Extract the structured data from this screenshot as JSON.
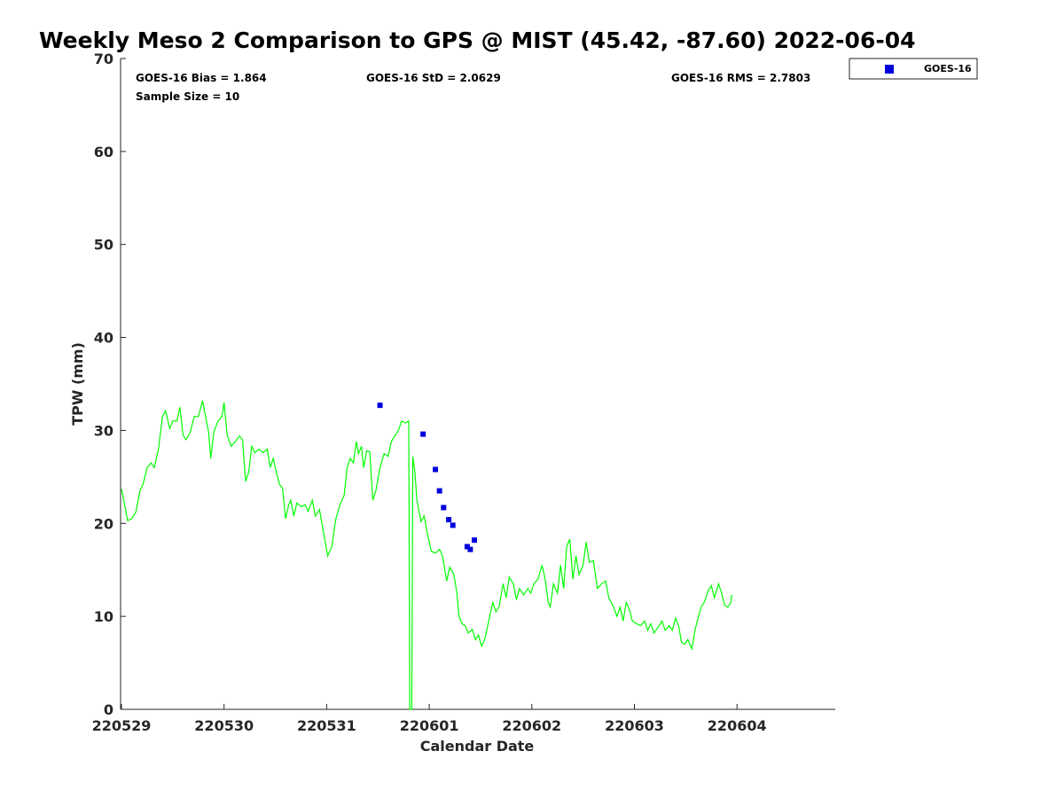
{
  "chart_data": {
    "type": "scatter",
    "title": "Weekly Meso 2 Comparison to GPS @ MIST (45.42, -87.60) 2022-06-04",
    "xlabel": "Calendar Date",
    "ylabel": "TPW (mm)",
    "ylim": [
      0,
      70
    ],
    "xlim": [
      0,
      6.95
    ],
    "yticks": [
      0,
      10,
      20,
      30,
      40,
      50,
      60,
      70
    ],
    "xticks": [
      {
        "value": 0,
        "label": "220529"
      },
      {
        "value": 1,
        "label": "220530"
      },
      {
        "value": 2,
        "label": "220531"
      },
      {
        "value": 3,
        "label": "220601"
      },
      {
        "value": 4,
        "label": "220602"
      },
      {
        "value": 5,
        "label": "220603"
      },
      {
        "value": 6,
        "label": "220604"
      }
    ],
    "grid": false,
    "legend_position": "top-right, outside",
    "annotations": {
      "bias": "GOES-16 Bias = 1.864",
      "std": "GOES-16 StD = 2.0629",
      "rms": "GOES-16 RMS = 2.7803",
      "sample": "Sample Size = 10"
    },
    "series": [
      {
        "name": "GOES-16",
        "kind": "scatter",
        "color": "#0000dd",
        "marker": "square",
        "points": [
          [
            2.52,
            32.7
          ],
          [
            2.94,
            29.6
          ],
          [
            3.06,
            25.8
          ],
          [
            3.1,
            23.5
          ],
          [
            3.14,
            21.7
          ],
          [
            3.19,
            20.4
          ],
          [
            3.23,
            19.8
          ],
          [
            3.37,
            17.5
          ],
          [
            3.4,
            17.2
          ],
          [
            3.44,
            18.2
          ]
        ]
      },
      {
        "kind": "line",
        "color": "#00ff00",
        "points": [
          [
            0.0,
            23.7
          ],
          [
            0.04,
            21.5
          ],
          [
            0.06,
            20.3
          ],
          [
            0.1,
            20.5
          ],
          [
            0.14,
            21.2
          ],
          [
            0.18,
            23.5
          ],
          [
            0.21,
            24.2
          ],
          [
            0.25,
            26.0
          ],
          [
            0.29,
            26.5
          ],
          [
            0.32,
            26.0
          ],
          [
            0.36,
            28.0
          ],
          [
            0.4,
            31.5
          ],
          [
            0.43,
            32.1
          ],
          [
            0.47,
            30.2
          ],
          [
            0.5,
            31.0
          ],
          [
            0.54,
            31.0
          ],
          [
            0.57,
            32.5
          ],
          [
            0.6,
            29.5
          ],
          [
            0.63,
            29.0
          ],
          [
            0.67,
            29.8
          ],
          [
            0.71,
            31.5
          ],
          [
            0.75,
            31.5
          ],
          [
            0.79,
            33.2
          ],
          [
            0.82,
            31.5
          ],
          [
            0.85,
            29.8
          ],
          [
            0.87,
            27.0
          ],
          [
            0.9,
            29.8
          ],
          [
            0.94,
            31.0
          ],
          [
            0.98,
            31.5
          ],
          [
            1.0,
            33.0
          ],
          [
            1.03,
            29.5
          ],
          [
            1.07,
            28.3
          ],
          [
            1.11,
            28.8
          ],
          [
            1.15,
            29.4
          ],
          [
            1.18,
            29.0
          ],
          [
            1.21,
            24.5
          ],
          [
            1.24,
            25.5
          ],
          [
            1.27,
            28.3
          ],
          [
            1.3,
            27.6
          ],
          [
            1.34,
            28.0
          ],
          [
            1.38,
            27.6
          ],
          [
            1.42,
            28.0
          ],
          [
            1.45,
            26.0
          ],
          [
            1.48,
            27.0
          ],
          [
            1.51,
            25.5
          ],
          [
            1.54,
            24.2
          ],
          [
            1.57,
            23.8
          ],
          [
            1.6,
            20.5
          ],
          [
            1.63,
            22.0
          ],
          [
            1.65,
            22.5
          ],
          [
            1.68,
            20.8
          ],
          [
            1.71,
            22.2
          ],
          [
            1.75,
            21.8
          ],
          [
            1.79,
            22.0
          ],
          [
            1.82,
            21.3
          ],
          [
            1.86,
            22.5
          ],
          [
            1.89,
            20.8
          ],
          [
            1.93,
            21.5
          ],
          [
            1.97,
            19.0
          ],
          [
            2.01,
            16.5
          ],
          [
            2.05,
            17.5
          ],
          [
            2.09,
            20.5
          ],
          [
            2.13,
            22.0
          ],
          [
            2.17,
            23.0
          ],
          [
            2.2,
            26.0
          ],
          [
            2.23,
            27.0
          ],
          [
            2.26,
            26.5
          ],
          [
            2.29,
            28.8
          ],
          [
            2.31,
            27.5
          ],
          [
            2.34,
            28.3
          ],
          [
            2.36,
            26.0
          ],
          [
            2.39,
            27.8
          ],
          [
            2.42,
            27.7
          ],
          [
            2.45,
            22.5
          ],
          [
            2.48,
            23.5
          ],
          [
            2.52,
            26.0
          ],
          [
            2.56,
            27.5
          ],
          [
            2.6,
            27.2
          ],
          [
            2.63,
            28.8
          ],
          [
            2.67,
            29.5
          ],
          [
            2.7,
            30.0
          ],
          [
            2.73,
            31.0
          ],
          [
            2.77,
            30.8
          ],
          [
            2.8,
            31.0
          ],
          [
            2.81,
            0.0
          ],
          [
            2.83,
            0.0
          ],
          [
            2.84,
            27.2
          ],
          [
            2.86,
            25.5
          ],
          [
            2.88,
            22.5
          ],
          [
            2.92,
            20.2
          ],
          [
            2.95,
            20.8
          ],
          [
            2.98,
            19.0
          ],
          [
            3.02,
            17.0
          ],
          [
            3.06,
            16.8
          ],
          [
            3.1,
            17.2
          ],
          [
            3.13,
            16.5
          ],
          [
            3.17,
            13.8
          ],
          [
            3.2,
            15.3
          ],
          [
            3.24,
            14.5
          ],
          [
            3.27,
            12.5
          ],
          [
            3.29,
            10.0
          ],
          [
            3.32,
            9.2
          ],
          [
            3.35,
            9.0
          ],
          [
            3.38,
            8.2
          ],
          [
            3.42,
            8.6
          ],
          [
            3.45,
            7.5
          ],
          [
            3.48,
            8.0
          ],
          [
            3.51,
            6.8
          ],
          [
            3.54,
            7.5
          ],
          [
            3.58,
            9.5
          ],
          [
            3.62,
            11.5
          ],
          [
            3.65,
            10.5
          ],
          [
            3.68,
            11.0
          ],
          [
            3.72,
            13.5
          ],
          [
            3.75,
            12.0
          ],
          [
            3.78,
            14.2
          ],
          [
            3.82,
            13.5
          ],
          [
            3.85,
            11.8
          ],
          [
            3.88,
            13.0
          ],
          [
            3.92,
            12.3
          ],
          [
            3.96,
            13.0
          ],
          [
            3.99,
            12.5
          ],
          [
            4.02,
            13.5
          ],
          [
            4.06,
            14.0
          ],
          [
            4.1,
            15.5
          ],
          [
            4.13,
            14.0
          ],
          [
            4.16,
            11.5
          ],
          [
            4.18,
            11.0
          ],
          [
            4.21,
            13.5
          ],
          [
            4.25,
            12.5
          ],
          [
            4.28,
            15.5
          ],
          [
            4.31,
            13.0
          ],
          [
            4.34,
            17.5
          ],
          [
            4.37,
            18.3
          ],
          [
            4.4,
            14.0
          ],
          [
            4.43,
            16.5
          ],
          [
            4.46,
            14.5
          ],
          [
            4.5,
            15.5
          ],
          [
            4.53,
            18.0
          ],
          [
            4.56,
            15.8
          ],
          [
            4.6,
            16.0
          ],
          [
            4.64,
            13.0
          ],
          [
            4.68,
            13.5
          ],
          [
            4.72,
            13.8
          ],
          [
            4.75,
            12.0
          ],
          [
            4.79,
            11.2
          ],
          [
            4.83,
            10.0
          ],
          [
            4.86,
            11.0
          ],
          [
            4.89,
            9.5
          ],
          [
            4.92,
            11.5
          ],
          [
            4.95,
            10.8
          ],
          [
            4.98,
            9.5
          ],
          [
            5.02,
            9.2
          ],
          [
            5.06,
            9.0
          ],
          [
            5.1,
            9.5
          ],
          [
            5.13,
            8.5
          ],
          [
            5.16,
            9.2
          ],
          [
            5.19,
            8.2
          ],
          [
            5.23,
            8.8
          ],
          [
            5.27,
            9.5
          ],
          [
            5.3,
            8.5
          ],
          [
            5.34,
            9.0
          ],
          [
            5.37,
            8.5
          ],
          [
            5.4,
            9.8
          ],
          [
            5.43,
            9.0
          ],
          [
            5.46,
            7.2
          ],
          [
            5.49,
            7.0
          ],
          [
            5.52,
            7.5
          ],
          [
            5.56,
            6.5
          ],
          [
            5.59,
            8.5
          ],
          [
            5.62,
            9.8
          ],
          [
            5.65,
            11.0
          ],
          [
            5.68,
            11.5
          ],
          [
            5.72,
            12.8
          ],
          [
            5.75,
            13.3
          ],
          [
            5.78,
            12.0
          ],
          [
            5.82,
            13.5
          ],
          [
            5.85,
            12.5
          ],
          [
            5.88,
            11.2
          ],
          [
            5.91,
            11.0
          ],
          [
            5.94,
            11.5
          ],
          [
            5.95,
            12.3
          ]
        ]
      }
    ]
  }
}
